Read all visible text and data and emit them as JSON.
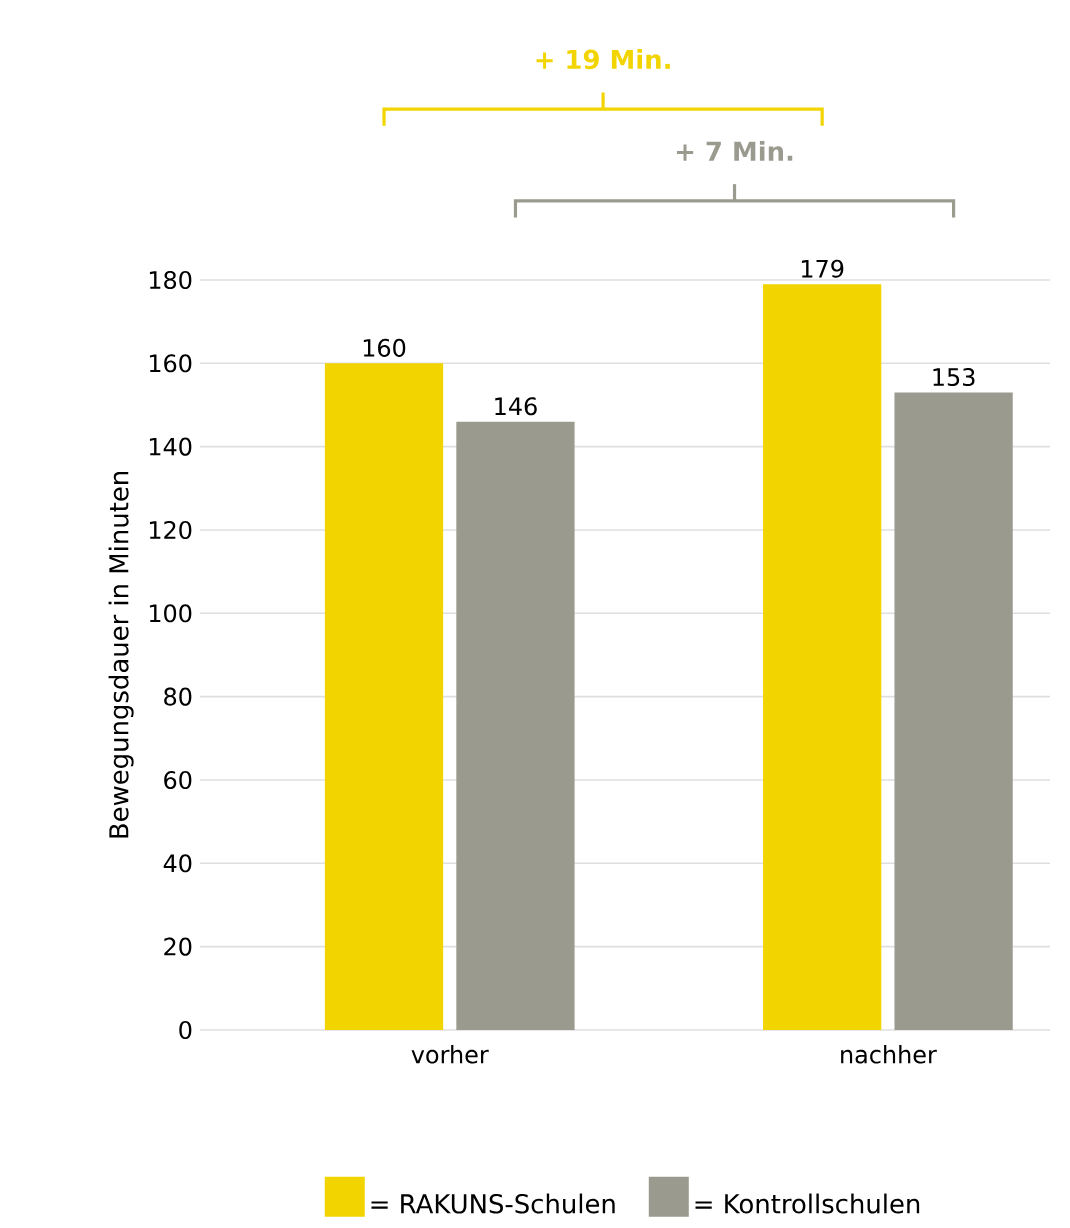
{
  "chart_data": {
    "type": "bar",
    "ylabel": "Bewegungsdauer in Minuten",
    "categories": [
      "vorher",
      "nachher"
    ],
    "series": [
      {
        "name": "= RAKUNS-Schulen",
        "color": "#f2d500",
        "values": [
          160,
          179
        ]
      },
      {
        "name": "= Kontrollschulen",
        "color": "#9b9a8f",
        "values": [
          146,
          153
        ]
      }
    ],
    "ylim": [
      0,
      180
    ],
    "yticks": [
      0,
      20,
      40,
      60,
      80,
      100,
      120,
      140,
      160,
      180
    ],
    "grid": "y",
    "legend": "bottom",
    "data_labels": true,
    "annotations": [
      "+ 19 Min.",
      "+ 7 Min."
    ]
  }
}
